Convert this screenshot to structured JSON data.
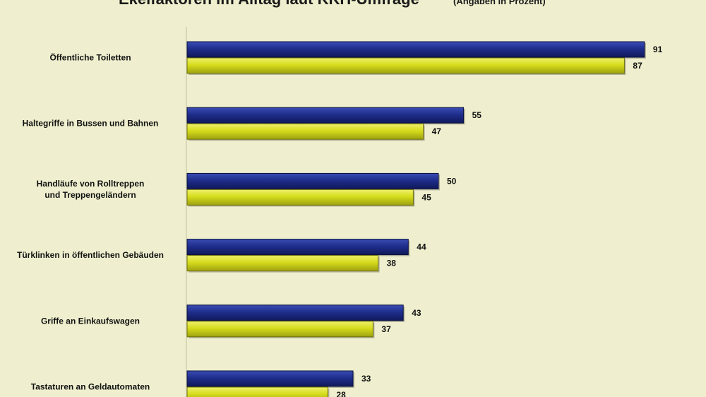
{
  "chart_data": {
    "type": "bar",
    "orientation": "horizontal",
    "title": "Ekelfaktoren im Alltag laut KKH-Umfrage",
    "subtitle": "(Angaben in Prozent)",
    "categories": [
      [
        "Öffentliche Toiletten"
      ],
      [
        "Haltegriffe in Bussen und Bahnen"
      ],
      [
        "Handläufe von Rolltreppen",
        "und Treppengeländern"
      ],
      [
        "Türklinken in öffentlichen Gebäuden"
      ],
      [
        "Griffe an Einkaufswagen"
      ],
      [
        "Tastaturen an Geldautomaten"
      ]
    ],
    "series": [
      {
        "values": [
          91,
          55,
          50,
          44,
          43,
          33
        ],
        "color": "#1f2e8c"
      },
      {
        "values": [
          87,
          47,
          45,
          38,
          37,
          28
        ],
        "color": "#d6dc1c"
      }
    ],
    "xlim": [
      0,
      100
    ],
    "grid": false,
    "legend": "none"
  }
}
